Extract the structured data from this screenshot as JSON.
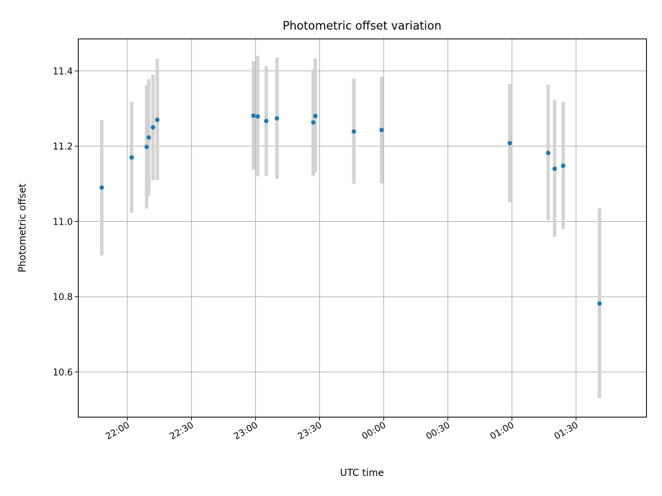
{
  "chart_data": {
    "type": "scatter",
    "title": "Photometric offset variation",
    "xlabel": "UTC time",
    "ylabel": "Photometric offset",
    "x_tick_labels": [
      "22:00",
      "22:30",
      "23:00",
      "23:30",
      "00:00",
      "00:30",
      "01:00",
      "01:30"
    ],
    "x_ticks": [
      "22:00",
      "22:30",
      "23:00",
      "23:30",
      "24:00",
      "24:30",
      "25:00",
      "25:30"
    ],
    "xlim": [
      "21:37",
      "26:03"
    ],
    "y_ticks": [
      10.6,
      10.8,
      11.0,
      11.2,
      11.4
    ],
    "y_tick_labels": [
      "10.6",
      "10.8",
      "11.0",
      "11.2",
      "11.4"
    ],
    "ylim": [
      10.48,
      11.485
    ],
    "grid": true,
    "colors": {
      "marker": "#1f77b4",
      "errorbar": "#d3d3d3",
      "grid": "#b0b0b0"
    },
    "series": [
      {
        "points": [
          {
            "x": "21:48",
            "y": 11.09,
            "yerr_low": 10.91,
            "yerr_high": 11.27
          },
          {
            "x": "22:02",
            "y": 11.17,
            "yerr_low": 11.023,
            "yerr_high": 11.318
          },
          {
            "x": "22:09",
            "y": 11.198,
            "yerr_low": 11.034,
            "yerr_high": 11.362
          },
          {
            "x": "22:10",
            "y": 11.223,
            "yerr_low": 11.068,
            "yerr_high": 11.378
          },
          {
            "x": "22:12",
            "y": 11.25,
            "yerr_low": 11.11,
            "yerr_high": 11.39
          },
          {
            "x": "22:14",
            "y": 11.27,
            "yerr_low": 11.11,
            "yerr_high": 11.432
          },
          {
            "x": "22:59",
            "y": 11.281,
            "yerr_low": 11.137,
            "yerr_high": 11.426
          },
          {
            "x": "23:01",
            "y": 11.279,
            "yerr_low": 11.12,
            "yerr_high": 11.44
          },
          {
            "x": "23:05",
            "y": 11.267,
            "yerr_low": 11.121,
            "yerr_high": 11.413
          },
          {
            "x": "23:10",
            "y": 11.274,
            "yerr_low": 11.113,
            "yerr_high": 11.436
          },
          {
            "x": "23:27",
            "y": 11.263,
            "yerr_low": 11.121,
            "yerr_high": 11.405
          },
          {
            "x": "23:28",
            "y": 11.28,
            "yerr_low": 11.13,
            "yerr_high": 11.433
          },
          {
            "x": "23:46",
            "y": 11.239,
            "yerr_low": 11.1,
            "yerr_high": 11.379
          },
          {
            "x": "23:59",
            "y": 11.243,
            "yerr_low": 11.101,
            "yerr_high": 11.385
          },
          {
            "x": "24:59",
            "y": 11.208,
            "yerr_low": 11.051,
            "yerr_high": 11.365
          },
          {
            "x": "25:17",
            "y": 11.182,
            "yerr_low": 11.003,
            "yerr_high": 11.363
          },
          {
            "x": "25:20",
            "y": 11.14,
            "yerr_low": 10.959,
            "yerr_high": 11.322
          },
          {
            "x": "25:24",
            "y": 11.148,
            "yerr_low": 10.98,
            "yerr_high": 11.317
          },
          {
            "x": "25:41",
            "y": 10.782,
            "yerr_low": 10.53,
            "yerr_high": 11.035
          }
        ]
      }
    ]
  }
}
